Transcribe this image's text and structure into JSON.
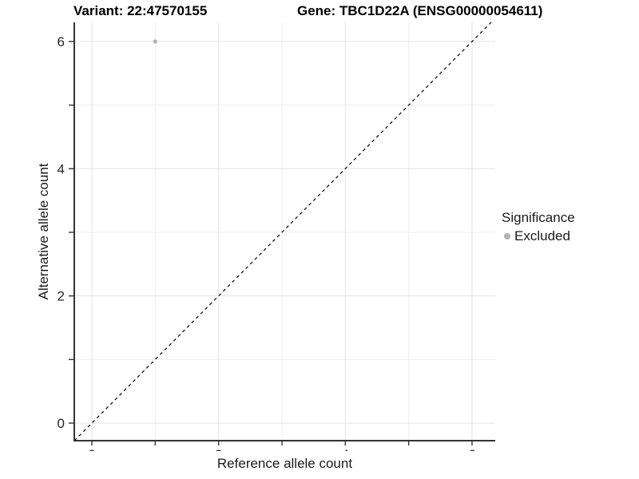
{
  "figure": {
    "title_left": "Variant: 22:47570155",
    "title_right": "Gene: TBC1D22A (ENSG00000054611)"
  },
  "chart_data": {
    "type": "scatter",
    "title": "Variant: 22:47570155   Gene: TBC1D22A (ENSG00000054611)",
    "xlabel": "Reference allele count",
    "ylabel": "Alternative allele count",
    "xlim": [
      -0.28,
      6.37
    ],
    "ylim": [
      -0.28,
      6.3
    ],
    "axis_ticks": [
      0,
      1,
      2,
      3,
      4,
      5,
      6
    ],
    "labeled_ticks": [
      0,
      2,
      4,
      6
    ],
    "grid": {
      "major": [
        0,
        2,
        4,
        6
      ],
      "minor": [
        1,
        3,
        5
      ],
      "major_color": "#e4e4e4",
      "minor_color": "#efefef"
    },
    "series": [
      {
        "name": "Excluded",
        "points": [
          {
            "x": 1,
            "y": 6
          }
        ],
        "color": "#b3b3b3"
      }
    ],
    "reference_line": {
      "slope": 1,
      "intercept": 0,
      "style": "dashed",
      "color": "#000000",
      "description": "identity line y = x"
    },
    "axis_color": "#333333",
    "background": "#ffffff",
    "legend": {
      "title": "Significance",
      "position": "right",
      "items": [
        {
          "label": "Excluded",
          "color": "#b3b3b3",
          "marker": "circle"
        }
      ]
    }
  }
}
